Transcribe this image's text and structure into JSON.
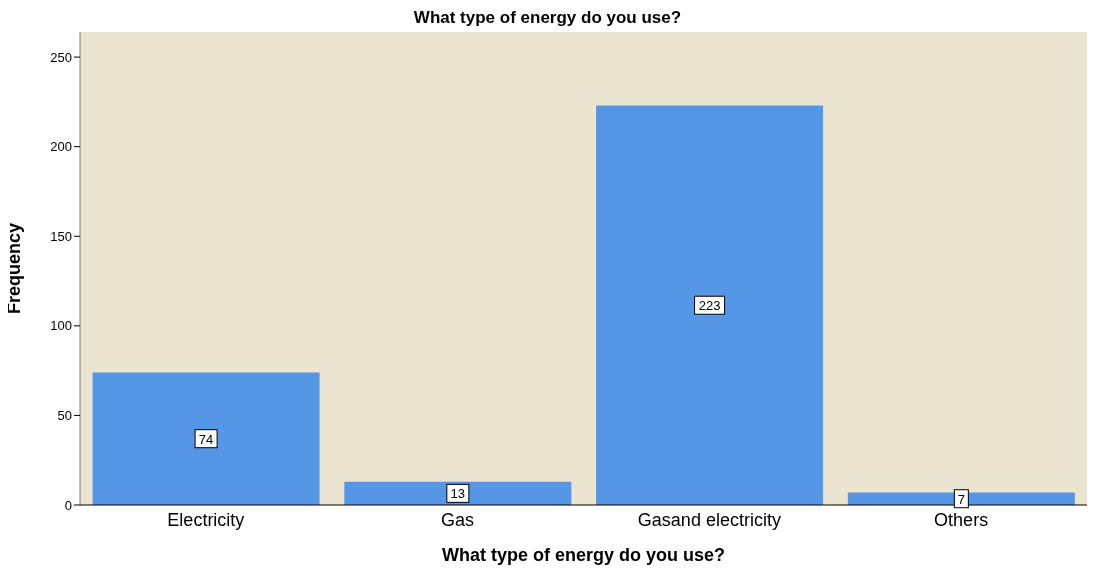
{
  "chart_data": {
    "type": "bar",
    "title": "What type of energy do you use?",
    "xlabel": "What type of energy do you use?",
    "ylabel": "Frequency",
    "categories": [
      "Electricity",
      "Gas",
      "Gasand electricity",
      "Others"
    ],
    "values": [
      74,
      13,
      223,
      7
    ],
    "color": "#5596e6",
    "ylim": [
      0,
      264
    ],
    "yticks": [
      0,
      50,
      100,
      150,
      200,
      250
    ],
    "grid": false,
    "data_labels": true
  }
}
